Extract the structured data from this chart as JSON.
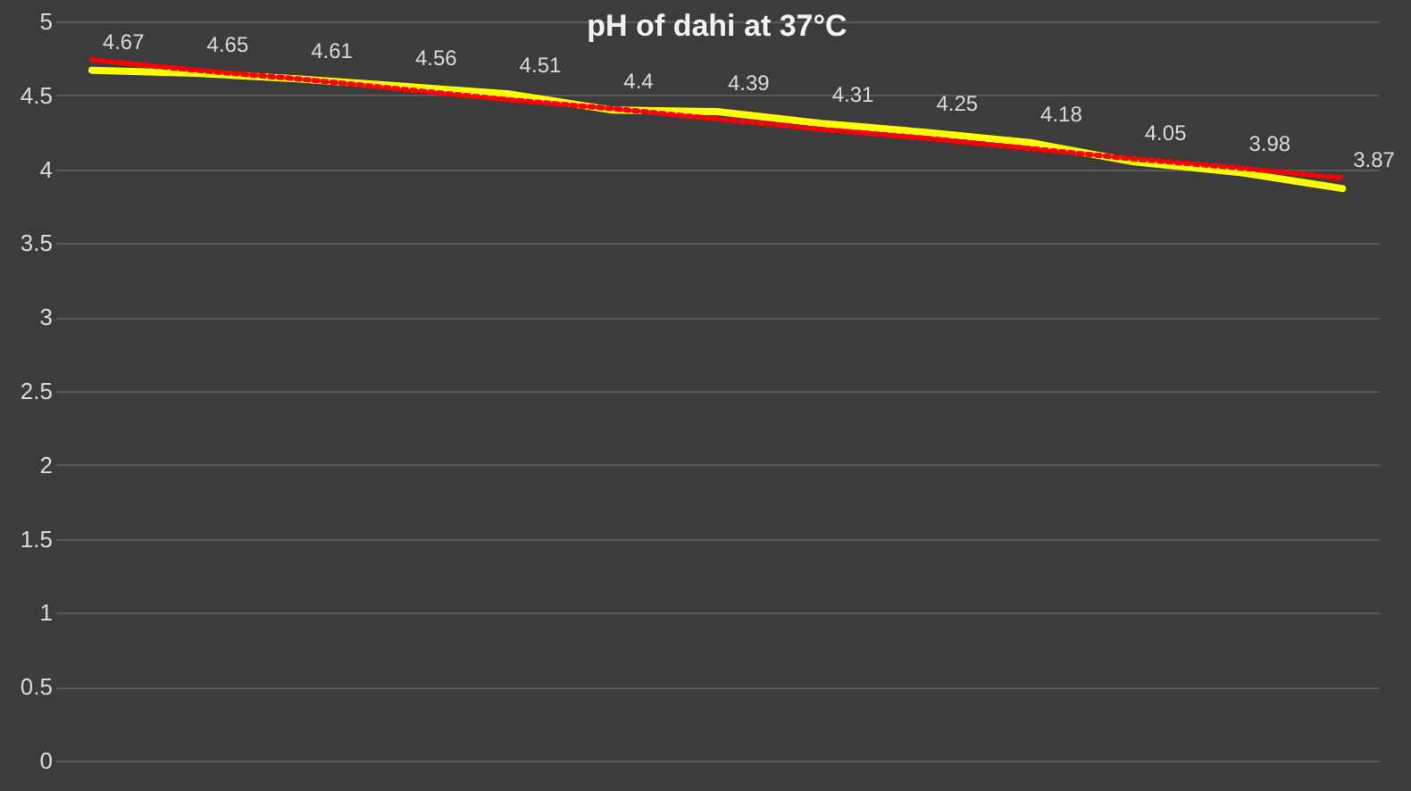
{
  "chart_data": {
    "type": "line",
    "title": "pH of dahi at 37°C",
    "categories": [
      null,
      null,
      null,
      null,
      null,
      null,
      null,
      null,
      null,
      null,
      null,
      null,
      null
    ],
    "series": [
      {
        "color": "#ffff00",
        "values": [
          4.67,
          4.65,
          4.61,
          4.56,
          4.51,
          4.4,
          4.39,
          4.31,
          4.25,
          4.18,
          4.05,
          3.98,
          3.87
        ],
        "data_labels": true,
        "line_style": "solid"
      },
      {
        "type": "line",
        "color": "#ff0000",
        "values": [
          4.74,
          4.67,
          4.61,
          4.54,
          4.47,
          4.41,
          4.34,
          4.27,
          4.21,
          4.14,
          4.07,
          4.01,
          3.94
        ],
        "line_style": "dotted"
      }
    ],
    "ylim": [
      0,
      5
    ],
    "yticks": [
      0,
      0.5,
      1,
      1.5,
      2,
      2.5,
      3,
      3.5,
      4,
      4.5,
      5
    ],
    "grid": "y",
    "marker": "none"
  }
}
